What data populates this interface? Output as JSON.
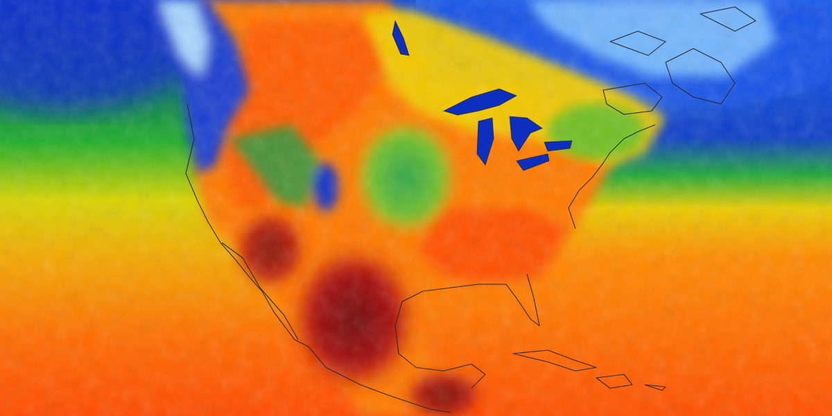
{
  "map": {
    "kind": "surface temperature heatmap",
    "region": "North America",
    "colors": {
      "coldest": "#f0f6ff",
      "very_cold": "#9fd0ff",
      "cold": "#1a56e8",
      "cool": "#0b2bb8",
      "mild": "#1f9e3a",
      "warmish": "#9ad21c",
      "warm": "#f2d400",
      "hot": "#ff8a00",
      "very_hot": "#e8350f",
      "hottest": "#8e0a0a",
      "coastline": "#2a2a2a"
    }
  }
}
